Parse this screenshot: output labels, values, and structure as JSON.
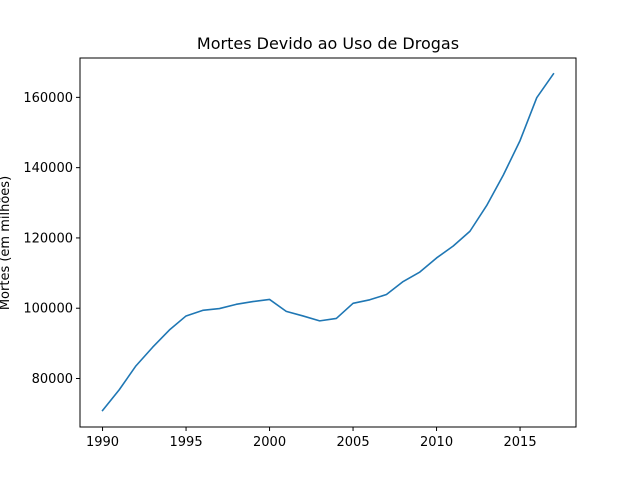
{
  "chart_data": {
    "type": "line",
    "title": "Mortes Devido ao Uso de Drogas",
    "xlabel": "",
    "ylabel": "Mortes (em milhões)",
    "xlim": [
      1988.65,
      2018.35
    ],
    "ylim": [
      66200,
      171200
    ],
    "xticks": [
      1990,
      1995,
      2000,
      2005,
      2010,
      2015
    ],
    "yticks": [
      80000,
      100000,
      120000,
      140000,
      160000
    ],
    "grid": false,
    "color": "#1f77b4",
    "series": [
      {
        "x": [
          1990,
          1991,
          1992,
          1993,
          1994,
          1995,
          1996,
          1997,
          1998,
          1999,
          2000,
          2001,
          2002,
          2003,
          2004,
          2005,
          2006,
          2007,
          2008,
          2009,
          2010,
          2011,
          2012,
          2013,
          2014,
          2015,
          2016,
          2017
        ],
        "y": [
          70900,
          76800,
          83600,
          88900,
          93800,
          97800,
          99400,
          99900,
          101100,
          101900,
          102500,
          99100,
          97800,
          96400,
          97100,
          101400,
          102400,
          103900,
          107600,
          110300,
          114300,
          117700,
          121900,
          129200,
          137900,
          147700,
          159900,
          166700
        ]
      }
    ]
  }
}
